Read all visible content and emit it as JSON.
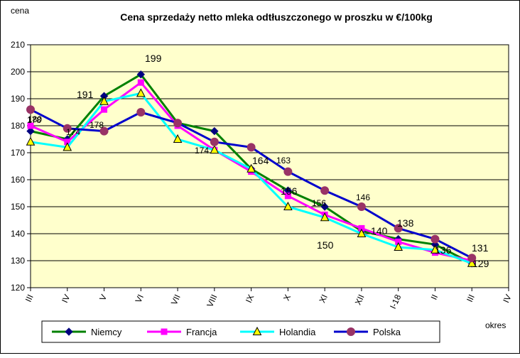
{
  "chart_data": {
    "type": "line",
    "title": "Cena sprzedaży netto mleka odtłuszczonego w proszku w €/100kg",
    "ylabel": "cena",
    "xlabel": "okres",
    "ylim": [
      120,
      210
    ],
    "yticks": [
      120,
      130,
      140,
      150,
      160,
      170,
      180,
      190,
      200,
      210
    ],
    "grid": true,
    "legend_position": "bottom",
    "categories": [
      "III",
      "IV",
      "V",
      "VI",
      "VII",
      "VIII",
      "IX",
      "X",
      "XI",
      "XII",
      "I-18",
      "II",
      "III",
      "IV"
    ],
    "series": [
      {
        "name": "Niemcy",
        "color": "#008000",
        "marker": "diamond",
        "marker_color": "#000080",
        "values": [
          178,
          175,
          191,
          199,
          181,
          178,
          164,
          156,
          150,
          141,
          138,
          136,
          129,
          null
        ]
      },
      {
        "name": "Francja",
        "color": "#ff00ff",
        "marker": "square",
        "marker_color": "#ff00ff",
        "values": [
          180,
          174,
          186,
          196,
          180,
          171,
          163,
          154,
          147,
          142,
          137,
          133,
          130,
          null
        ]
      },
      {
        "name": "Holandia",
        "color": "#00ffff",
        "marker": "triangle",
        "marker_color": "#ffff00",
        "values": [
          174,
          172,
          189,
          192,
          175,
          171,
          164,
          150,
          146,
          140,
          135,
          134,
          129,
          null
        ]
      },
      {
        "name": "Polska",
        "color": "#0000cc",
        "marker": "circle",
        "marker_color": "#993366",
        "values": [
          186,
          179,
          178,
          185,
          181,
          174,
          172,
          163,
          156,
          150,
          142,
          138,
          131,
          null
        ]
      }
    ],
    "annotations": [
      "178",
      "180",
      "174",
      "191",
      "178",
      "199",
      "174",
      "164",
      "163",
      "156",
      "156",
      "150",
      "146",
      "140",
      "138",
      "136",
      "131",
      "129"
    ]
  },
  "colors": {
    "plot_background": "#ffffcc",
    "grid": "#000000",
    "axis": "#000000"
  }
}
